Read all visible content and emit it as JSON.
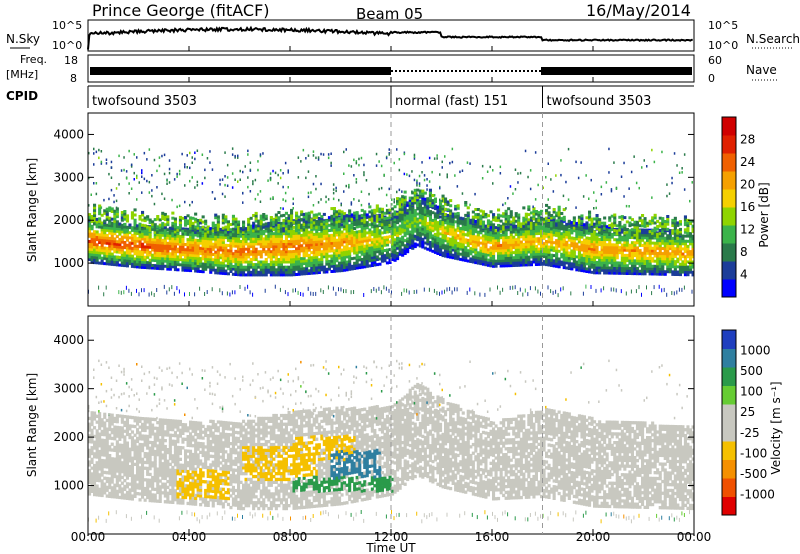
{
  "header": {
    "station": "Prince George (fitACF)",
    "beam": "Beam 05",
    "date": "16/May/2014"
  },
  "panels": {
    "nsky": {
      "label": "N.Sky",
      "right_label": "N.Search",
      "left_ticks": [
        "10^5",
        "10^0"
      ],
      "right_ticks": [
        "10^5",
        "10^0"
      ]
    },
    "freq": {
      "label_line1": "Freq.",
      "label_line2": "[MHz]",
      "right_label": "Nave",
      "left_ticks": [
        "18",
        "8"
      ],
      "right_ticks": [
        "60",
        "0"
      ]
    },
    "cpid": {
      "label": "CPID",
      "segments": [
        {
          "label": "twofsound 3503",
          "start_h": 0,
          "end_h": 12
        },
        {
          "label": "normal (fast) 151",
          "start_h": 12,
          "end_h": 18
        },
        {
          "label": "twofsound 3503",
          "start_h": 18,
          "end_h": 24
        }
      ]
    }
  },
  "axes": {
    "xlabel": "Time UT",
    "x_ticks": [
      "00:00",
      "04:00",
      "08:00",
      "12:00",
      "16:00",
      "20:00",
      "00:00"
    ],
    "ylabel": "Slant Range [km]",
    "y_ticks": [
      "1000",
      "2000",
      "3000",
      "4000"
    ]
  },
  "colorbars": {
    "power": {
      "label": "Power [dB]",
      "ticks": [
        "4",
        "8",
        "12",
        "16",
        "20",
        "24",
        "28"
      ],
      "colors": [
        "#0000ff",
        "#1c3d99",
        "#2a7a4a",
        "#3bb34a",
        "#8fd400",
        "#f5d000",
        "#f5a000",
        "#f06000",
        "#e02000",
        "#d00000"
      ]
    },
    "velocity": {
      "label": "Velocity [m s⁻¹]",
      "ticks": [
        "1000",
        "500",
        "100",
        "25",
        "-25",
        "-100",
        "-500",
        "-1000"
      ],
      "colors": [
        "#1f3fbf",
        "#2f7fa0",
        "#2a9a4a",
        "#66cc33",
        "#c8c8c0",
        "#c8c8c0",
        "#f5c000",
        "#f59000",
        "#f05000",
        "#e00000"
      ]
    }
  },
  "chart_data": {
    "type": "heatmap",
    "x_range_hours": [
      0,
      24
    ],
    "y_range_km": [
      0,
      4500
    ],
    "dashed_time_markers_h": [
      12,
      18
    ],
    "main_band": [
      {
        "t": 0,
        "range_km": 1500,
        "width_km": 500,
        "power_db": 26
      },
      {
        "t": 2,
        "range_km": 1380,
        "width_km": 500,
        "power_db": 26
      },
      {
        "t": 4,
        "range_km": 1300,
        "width_km": 500,
        "power_db": 24
      },
      {
        "t": 6,
        "range_km": 1250,
        "width_km": 550,
        "power_db": 24
      },
      {
        "t": 8,
        "range_km": 1350,
        "width_km": 650,
        "power_db": 24
      },
      {
        "t": 10,
        "range_km": 1450,
        "width_km": 650,
        "power_db": 22
      },
      {
        "t": 12,
        "range_km": 1550,
        "width_km": 550,
        "power_db": 16
      },
      {
        "t": 13,
        "range_km": 2000,
        "width_km": 600,
        "power_db": 14
      },
      {
        "t": 14,
        "range_km": 1700,
        "width_km": 550,
        "power_db": 18
      },
      {
        "t": 16,
        "range_km": 1350,
        "width_km": 450,
        "power_db": 22
      },
      {
        "t": 18,
        "range_km": 1500,
        "width_km": 550,
        "power_db": 20
      },
      {
        "t": 20,
        "range_km": 1300,
        "width_km": 550,
        "power_db": 22
      },
      {
        "t": 24,
        "range_km": 1200,
        "width_km": 500,
        "power_db": 22
      }
    ],
    "velocity_features": [
      {
        "t0": 3.5,
        "t1": 5.5,
        "r0": 700,
        "r1": 1300,
        "velocity": -300
      },
      {
        "t0": 6,
        "t1": 9,
        "r0": 1100,
        "r1": 1800,
        "velocity": -300
      },
      {
        "t0": 8,
        "t1": 10.5,
        "r0": 1500,
        "r1": 2000,
        "velocity": -150
      },
      {
        "t0": 9.5,
        "t1": 11.5,
        "r0": 1100,
        "r1": 1700,
        "velocity": 700
      },
      {
        "t0": 8,
        "t1": 12,
        "r0": 850,
        "r1": 1150,
        "velocity": 150
      }
    ]
  }
}
